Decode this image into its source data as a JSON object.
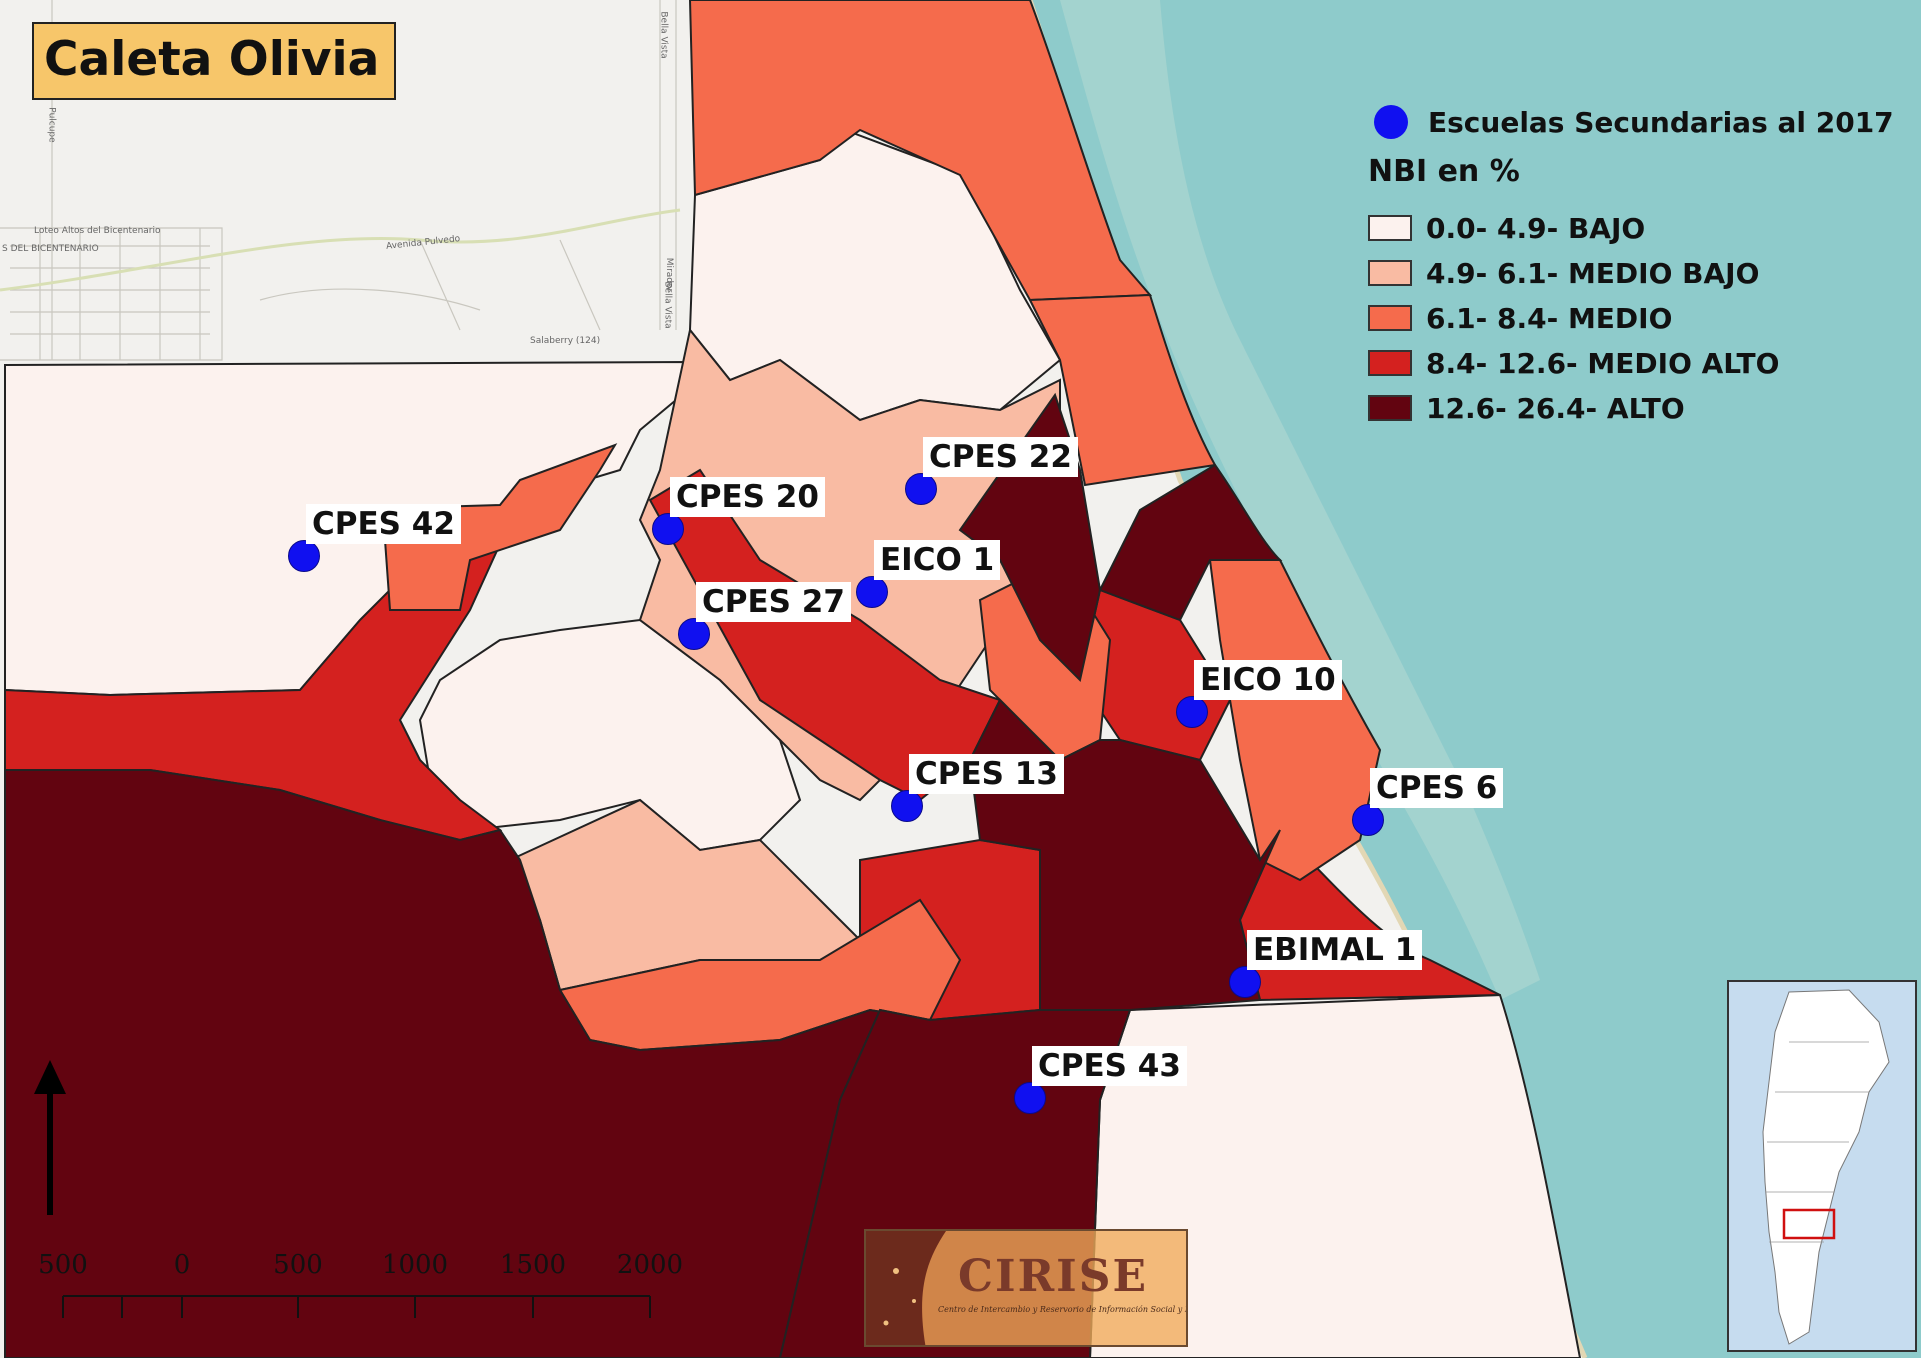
{
  "title": "Caleta Olivia",
  "legend": {
    "schools_label": "Escuelas Secundarias al 2017",
    "nbi_heading": "NBI en %",
    "classes": [
      {
        "label": "0.0- 4.9- BAJO",
        "color": "#fcf2ee"
      },
      {
        "label": "4.9- 6.1- MEDIO BAJO",
        "color": "#f9bba3"
      },
      {
        "label": "6.1- 8.4- MEDIO",
        "color": "#f56b4c"
      },
      {
        "label": "8.4- 12.6- MEDIO ALTO",
        "color": "#d4211f"
      },
      {
        "label": "12.6- 26.4- ALTO",
        "color": "#620410"
      }
    ]
  },
  "schools": [
    {
      "name": "CPES 42"
    },
    {
      "name": "CPES 20"
    },
    {
      "name": "CPES 22"
    },
    {
      "name": "EICO 1"
    },
    {
      "name": "CPES 27"
    },
    {
      "name": "EICO 10"
    },
    {
      "name": "CPES 13"
    },
    {
      "name": "CPES 6"
    },
    {
      "name": "EBIMAL 1"
    },
    {
      "name": "CPES 43"
    }
  ],
  "scale_bar": {
    "labels": [
      "500",
      "0",
      "500",
      "1000",
      "1500",
      "2000"
    ]
  },
  "streets": [
    "Loteo Altos del Bicentenario",
    "S DEL BICENTENARIO",
    "Avenida Pulvedo",
    "Salaberry (124)",
    "Bella Vista",
    "Mirador",
    "Bella Vista",
    "Pulcupe"
  ],
  "watermark": {
    "name": "CIRISE",
    "subtitle": "Centro de Intercambio y Reservorio de Información Social y Educativa"
  },
  "colors": {
    "sea": "#8ecbcb",
    "basemap": "#f2f1ee",
    "school_marker": "#1010f0"
  },
  "icons": [
    "north-arrow-icon",
    "argentina-inset-map"
  ]
}
